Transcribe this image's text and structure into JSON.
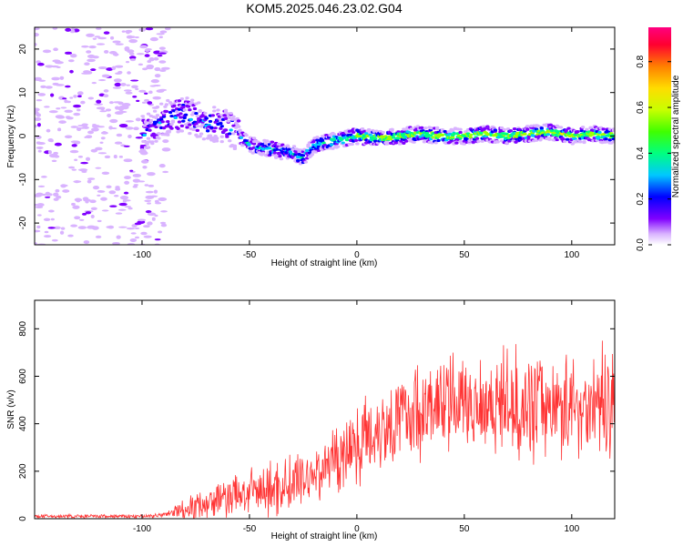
{
  "title": "KOM5.2025.046.23.02.G04",
  "chart_data": [
    {
      "type": "heatmap",
      "xlabel": "Height of straight line (km)",
      "ylabel": "Frequency (Hz)",
      "xlim": [
        -150,
        120
      ],
      "ylim": [
        -25,
        25
      ],
      "xticks": [
        "-100",
        "-50",
        "0",
        "50",
        "100"
      ],
      "yticks": [
        "-20",
        "-10",
        "0",
        "10",
        "20"
      ],
      "colorbar": {
        "label": "Normalized spectral amplitude",
        "range": [
          0,
          0.95
        ],
        "ticks": [
          "0.0",
          "0.2",
          "0.4",
          "0.6",
          "0.8"
        ]
      },
      "ridge": {
        "x": [
          -150,
          -120,
          -100,
          -90,
          -80,
          -70,
          -60,
          -55,
          -50,
          -40,
          -30,
          -25,
          -20,
          -10,
          0,
          10,
          20,
          30,
          40,
          50,
          60,
          70,
          80,
          90,
          100,
          110,
          120
        ],
        "freq": [
          0,
          0,
          0,
          4,
          5,
          3,
          2,
          0,
          -2,
          -3,
          -4,
          -5,
          -2,
          -1,
          0,
          -0.5,
          0,
          0.5,
          0,
          0,
          0.5,
          0,
          0.5,
          1,
          0,
          0.5,
          0
        ]
      },
      "grid": false
    },
    {
      "type": "line",
      "xlabel": "Height of straight line (km)",
      "ylabel": "SNR (v/v)",
      "xlim": [
        -150,
        120
      ],
      "ylim": [
        0,
        920
      ],
      "xticks": [
        "-100",
        "-50",
        "0",
        "50",
        "100"
      ],
      "yticks": [
        "0",
        "200",
        "400",
        "600",
        "800"
      ],
      "color": "#ff3333",
      "envelope": {
        "x": [
          -150,
          -100,
          -90,
          -80,
          -70,
          -60,
          -50,
          -40,
          -30,
          -20,
          -10,
          0,
          10,
          20,
          30,
          40,
          50,
          60,
          70,
          80,
          90,
          100,
          110,
          120
        ],
        "mean": [
          10,
          10,
          15,
          40,
          70,
          90,
          110,
          120,
          150,
          190,
          250,
          320,
          380,
          430,
          460,
          480,
          490,
          500,
          490,
          480,
          480,
          470,
          480,
          500
        ],
        "spread": [
          10,
          10,
          15,
          60,
          80,
          100,
          120,
          140,
          150,
          160,
          180,
          200,
          220,
          240,
          240,
          240,
          240,
          260,
          260,
          260,
          260,
          260,
          260,
          280
        ]
      },
      "grid": false
    }
  ]
}
